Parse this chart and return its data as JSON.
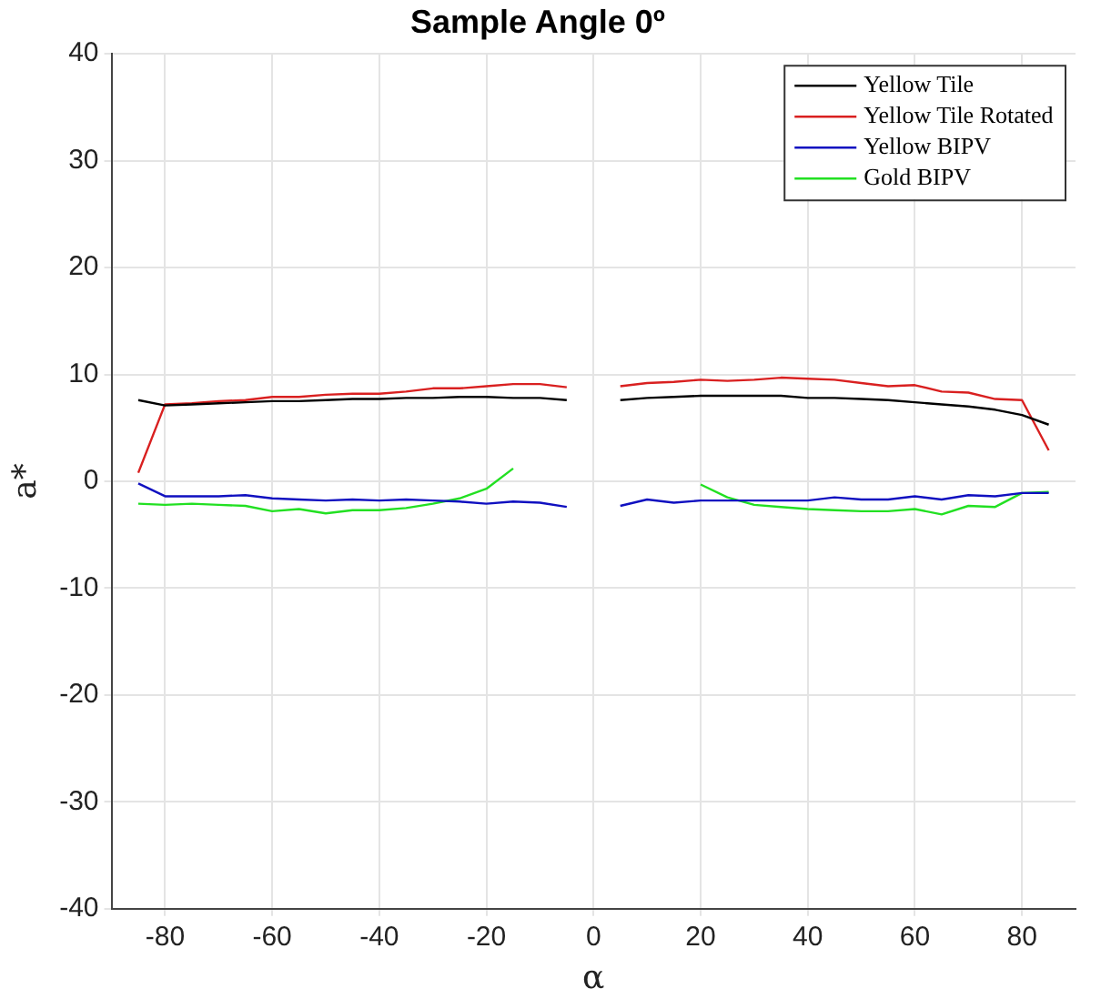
{
  "chart_data": {
    "type": "line",
    "title": "Sample Angle 0º",
    "xlabel": "α",
    "ylabel": "a*",
    "x": [
      -85,
      -80,
      -75,
      -70,
      -65,
      -60,
      -55,
      -50,
      -45,
      -40,
      -35,
      -30,
      -25,
      -20,
      -15,
      -10,
      -5,
      0,
      5,
      10,
      15,
      20,
      25,
      30,
      35,
      40,
      45,
      50,
      55,
      60,
      65,
      70,
      75,
      80,
      85
    ],
    "series": [
      {
        "name": "Yellow Tile",
        "color": "#000000",
        "values": [
          7.6,
          7.1,
          7.2,
          7.3,
          7.4,
          7.5,
          7.5,
          7.6,
          7.7,
          7.7,
          7.8,
          7.8,
          7.9,
          7.9,
          7.8,
          7.8,
          7.6,
          null,
          7.6,
          7.8,
          7.9,
          8.0,
          8.0,
          8.0,
          8.0,
          7.8,
          7.8,
          7.7,
          7.6,
          7.4,
          7.2,
          7.0,
          6.7,
          6.2,
          5.3
        ]
      },
      {
        "name": "Yellow Tile Rotated",
        "color": "#d92020",
        "values": [
          0.8,
          7.2,
          7.3,
          7.5,
          7.6,
          7.9,
          7.9,
          8.1,
          8.2,
          8.2,
          8.4,
          8.7,
          8.7,
          8.9,
          9.1,
          9.1,
          8.8,
          null,
          8.9,
          9.2,
          9.3,
          9.5,
          9.4,
          9.5,
          9.7,
          9.6,
          9.5,
          9.2,
          8.9,
          9.0,
          8.4,
          8.3,
          7.7,
          7.6,
          2.9
        ]
      },
      {
        "name": "Yellow BIPV",
        "color": "#1010c0",
        "values": [
          -0.2,
          -1.4,
          -1.4,
          -1.4,
          -1.3,
          -1.6,
          -1.7,
          -1.8,
          -1.7,
          -1.8,
          -1.7,
          -1.8,
          -1.9,
          -2.1,
          -1.9,
          -2.0,
          -2.4,
          null,
          -2.3,
          -1.7,
          -2.0,
          -1.8,
          -1.8,
          -1.8,
          -1.8,
          -1.8,
          -1.5,
          -1.7,
          -1.7,
          -1.4,
          -1.7,
          -1.3,
          -1.4,
          -1.1,
          -1.1
        ]
      },
      {
        "name": "Gold BIPV",
        "color": "#22e022",
        "values": [
          -2.1,
          -2.2,
          -2.1,
          -2.2,
          -2.3,
          -2.8,
          -2.6,
          -3.0,
          -2.7,
          -2.7,
          -2.5,
          -2.1,
          -1.6,
          -0.7,
          1.2,
          null,
          null,
          null,
          null,
          null,
          null,
          -0.3,
          -1.5,
          -2.2,
          -2.4,
          -2.6,
          -2.7,
          -2.8,
          -2.8,
          -2.6,
          -3.1,
          -2.3,
          -2.4,
          -1.1,
          -1.0
        ]
      }
    ],
    "xlim": [
      -90,
      90
    ],
    "xticks": [
      -80,
      -60,
      -40,
      -20,
      0,
      20,
      40,
      60,
      80
    ],
    "ylim": [
      -40,
      40
    ],
    "yticks": [
      -40,
      -30,
      -20,
      -10,
      0,
      10,
      20,
      30,
      40
    ],
    "grid": true,
    "legend": "top right",
    "marker": "none",
    "line_style": "solid"
  }
}
